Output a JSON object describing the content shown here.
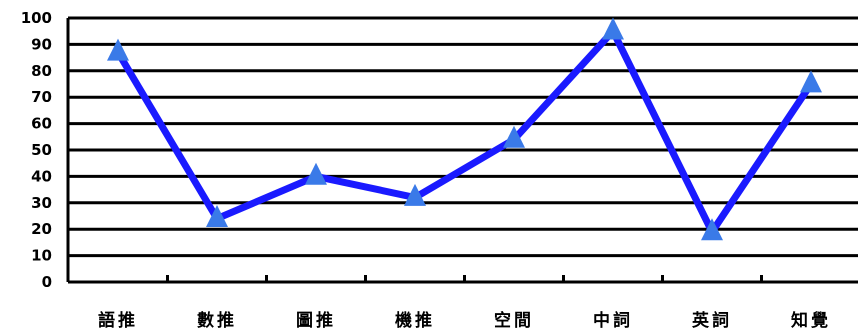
{
  "chart_data": {
    "type": "line",
    "categories": [
      "語推",
      "數推",
      "圖推",
      "機推",
      "空間",
      "中詞",
      "英詞",
      "知覺"
    ],
    "series": [
      {
        "values": [
          87,
          24,
          40,
          32,
          54,
          95,
          19,
          75
        ]
      }
    ],
    "ylim": [
      0,
      100
    ],
    "yticks": [
      0,
      10,
      20,
      30,
      40,
      50,
      60,
      70,
      80,
      90,
      100
    ],
    "grid": true,
    "legend": "none",
    "colors": {
      "line": "#1a1aff",
      "marker": "#3a7ae8",
      "grid": "#000000"
    }
  }
}
